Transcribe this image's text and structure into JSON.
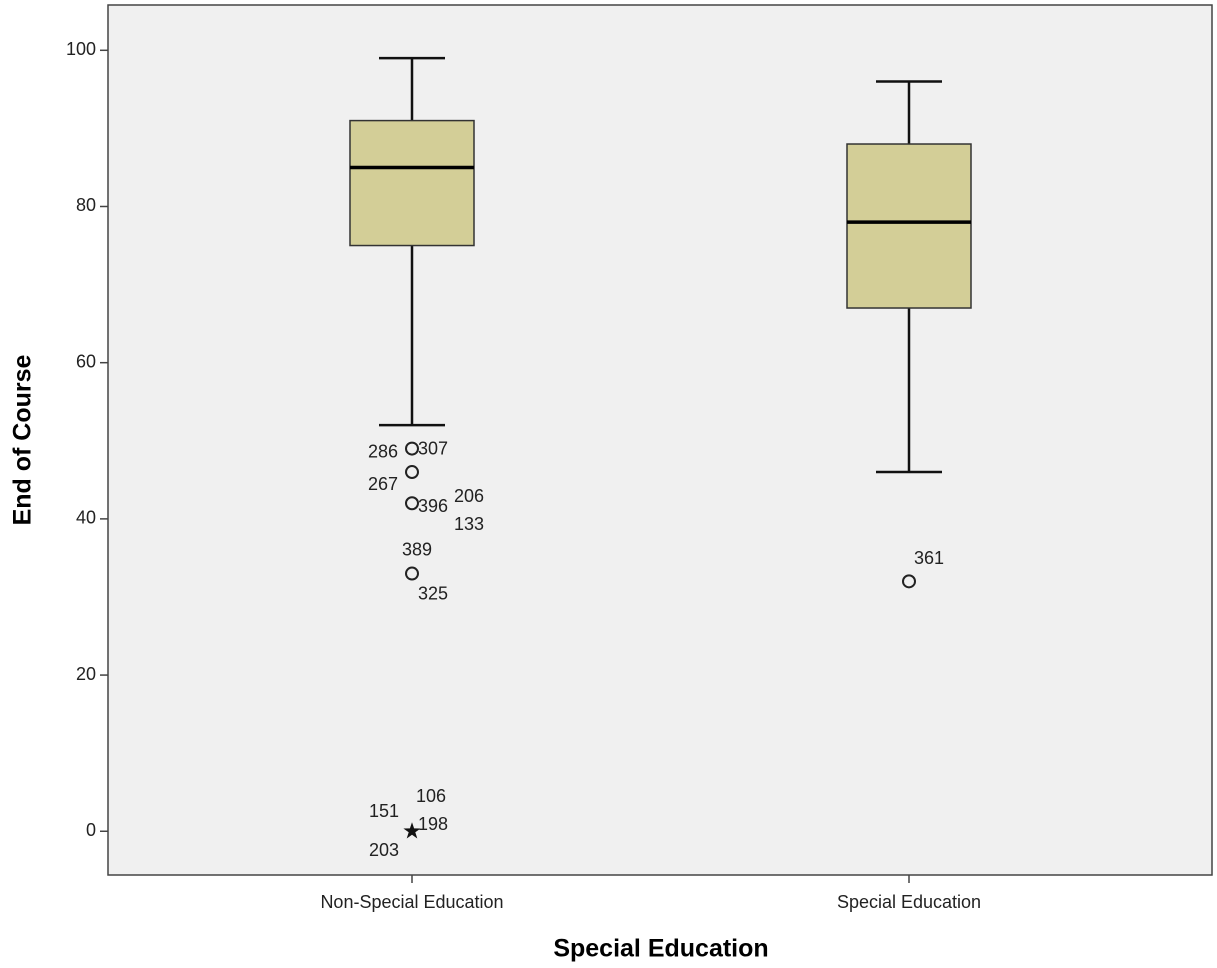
{
  "chart_data": {
    "type": "box",
    "x_label": "Special Education",
    "y_label": "End of Course",
    "categories": [
      "Non-Special Education",
      "Special Education"
    ],
    "box_color": "#d3ce97",
    "background": "#f0f0f0",
    "ylim": [
      -5.6,
      105.8
    ],
    "yticks": [
      0,
      20,
      40,
      60,
      80,
      100
    ],
    "boxes": [
      {
        "low": 52,
        "q1": 75,
        "median": 85,
        "q3": 91,
        "high": 99,
        "outliers": [
          {
            "value": 49,
            "labels": [
              "286",
              "307"
            ]
          },
          {
            "value": 46,
            "labels": [
              "267"
            ]
          },
          {
            "value": 42,
            "labels": [
              "396",
              "206",
              "133"
            ]
          },
          {
            "value": 33,
            "labels": [
              "389",
              "325"
            ]
          }
        ],
        "extremes": [
          {
            "value": 0,
            "labels": [
              "151",
              "106",
              "198",
              "203"
            ]
          }
        ]
      },
      {
        "low": 46,
        "q1": 67,
        "median": 78,
        "q3": 88,
        "high": 96,
        "outliers": [
          {
            "value": 32,
            "labels": [
              "361"
            ]
          }
        ],
        "extremes": []
      }
    ]
  }
}
